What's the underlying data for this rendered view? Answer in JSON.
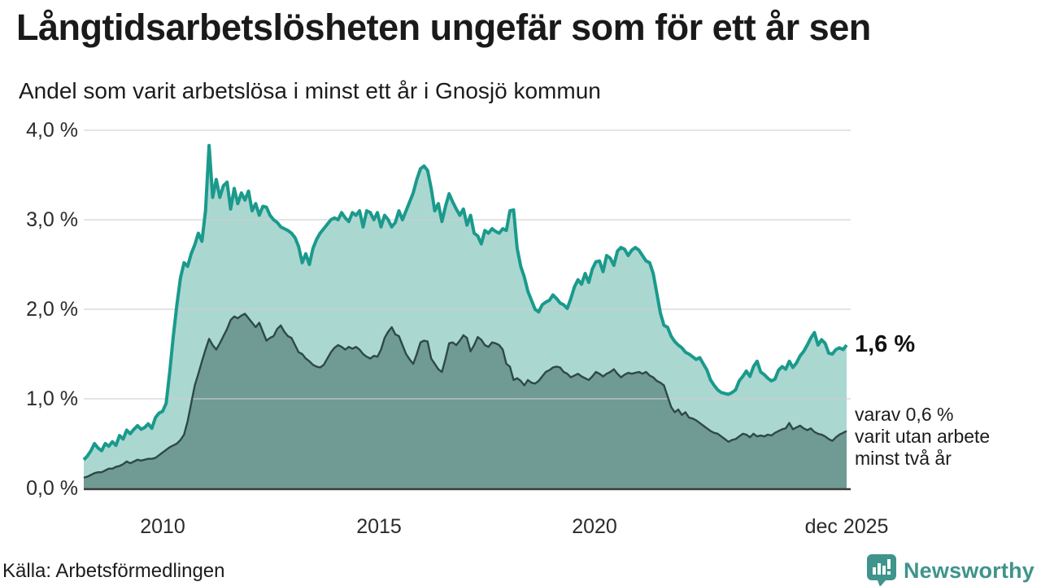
{
  "header": {
    "title": "Långtidsarbetslösheten ungefär som för ett år sen",
    "subtitle": "Andel som varit arbetslösa i minst ett år i Gnosjö kommun"
  },
  "annotations": {
    "total_value_label": "1,6 %",
    "two_year_line1": "varav 0,6 %",
    "two_year_line2": "varit utan arbete",
    "two_year_line3": "minst två år"
  },
  "footer": {
    "source": "Källa: Arbetsförmedlingen",
    "brand": "Newsworthy"
  },
  "colors": {
    "total_line": "#1a9a8c",
    "total_fill": "#abd7d1",
    "two_year_line": "#2e4a45",
    "two_year_fill": "#6f9b94",
    "gridline": "#cfcfcf",
    "baseline": "#3b3b3b",
    "brand_teal": "#3f948b",
    "text": "#1c1c1c"
  },
  "chart_data": {
    "type": "area",
    "title": "Långtidsarbetslösheten ungefär som för ett år sen",
    "subtitle": "Andel som varit arbetslösa i minst ett år i Gnosjö kommun",
    "ylabel": "",
    "xlabel": "",
    "ylim": [
      0,
      4
    ],
    "grid": true,
    "frequency": "monthly",
    "x_start": "2008-03",
    "x_end": "2025-12",
    "yticks": [
      {
        "value": 4,
        "label": "4,0 %"
      },
      {
        "value": 3,
        "label": "3,0 %"
      },
      {
        "value": 2,
        "label": "2,0 %"
      },
      {
        "value": 1,
        "label": "1,0 %"
      },
      {
        "value": 0,
        "label": "0,0 %"
      }
    ],
    "xticks": [
      {
        "index": 22,
        "label": "2010"
      },
      {
        "index": 82,
        "label": "2015"
      },
      {
        "index": 142,
        "label": "2020"
      },
      {
        "index": 213,
        "label": "dec 2025"
      }
    ],
    "series": [
      {
        "name": "Arbetslösa minst ett år",
        "end_value": 1.6,
        "values": [
          0.32,
          0.36,
          0.42,
          0.5,
          0.45,
          0.42,
          0.5,
          0.47,
          0.52,
          0.48,
          0.59,
          0.55,
          0.65,
          0.61,
          0.66,
          0.7,
          0.66,
          0.68,
          0.72,
          0.67,
          0.79,
          0.84,
          0.86,
          0.95,
          1.3,
          1.7,
          2.05,
          2.35,
          2.52,
          2.48,
          2.62,
          2.72,
          2.85,
          2.76,
          3.1,
          3.83,
          3.25,
          3.45,
          3.25,
          3.38,
          3.42,
          3.12,
          3.35,
          3.18,
          3.3,
          3.22,
          3.32,
          3.1,
          3.18,
          3.05,
          3.15,
          3.14,
          3.05,
          3.0,
          2.97,
          2.92,
          2.9,
          2.88,
          2.85,
          2.8,
          2.7,
          2.52,
          2.62,
          2.5,
          2.68,
          2.78,
          2.85,
          2.9,
          2.95,
          3.0,
          3.02,
          3.0,
          3.08,
          3.02,
          2.98,
          3.08,
          3.05,
          3.1,
          2.92,
          3.1,
          3.08,
          3.0,
          3.08,
          2.92,
          3.05,
          3.0,
          2.92,
          2.97,
          3.1,
          3.0,
          3.1,
          3.2,
          3.3,
          3.45,
          3.57,
          3.6,
          3.55,
          3.35,
          3.1,
          3.18,
          2.98,
          3.15,
          3.29,
          3.2,
          3.12,
          3.05,
          3.12,
          2.94,
          3.05,
          2.85,
          2.82,
          2.73,
          2.88,
          2.85,
          2.9,
          2.87,
          2.85,
          2.9,
          2.88,
          3.1,
          3.11,
          2.68,
          2.48,
          2.36,
          2.2,
          2.1,
          2.0,
          1.97,
          2.05,
          2.08,
          2.1,
          2.16,
          2.12,
          2.07,
          2.05,
          2.01,
          2.12,
          2.25,
          2.33,
          2.28,
          2.4,
          2.3,
          2.45,
          2.53,
          2.54,
          2.42,
          2.6,
          2.57,
          2.49,
          2.65,
          2.69,
          2.67,
          2.6,
          2.66,
          2.69,
          2.66,
          2.6,
          2.54,
          2.52,
          2.4,
          2.18,
          1.96,
          1.82,
          1.8,
          1.7,
          1.64,
          1.6,
          1.57,
          1.52,
          1.5,
          1.47,
          1.44,
          1.46,
          1.39,
          1.32,
          1.21,
          1.15,
          1.1,
          1.07,
          1.06,
          1.05,
          1.07,
          1.1,
          1.2,
          1.25,
          1.31,
          1.25,
          1.36,
          1.42,
          1.3,
          1.27,
          1.23,
          1.2,
          1.22,
          1.32,
          1.36,
          1.33,
          1.42,
          1.35,
          1.4,
          1.48,
          1.53,
          1.6,
          1.68,
          1.74,
          1.6,
          1.66,
          1.62,
          1.51,
          1.5,
          1.55,
          1.57,
          1.55,
          1.6
        ]
      },
      {
        "name": "Varav utan arbete minst två år",
        "end_value": 0.6,
        "values": [
          0.12,
          0.13,
          0.15,
          0.17,
          0.18,
          0.18,
          0.2,
          0.22,
          0.22,
          0.24,
          0.25,
          0.27,
          0.3,
          0.28,
          0.3,
          0.32,
          0.31,
          0.32,
          0.33,
          0.33,
          0.34,
          0.37,
          0.4,
          0.43,
          0.46,
          0.48,
          0.5,
          0.54,
          0.6,
          0.75,
          0.95,
          1.15,
          1.28,
          1.42,
          1.55,
          1.67,
          1.6,
          1.55,
          1.62,
          1.7,
          1.78,
          1.88,
          1.92,
          1.9,
          1.93,
          1.95,
          1.9,
          1.85,
          1.8,
          1.85,
          1.75,
          1.65,
          1.68,
          1.7,
          1.78,
          1.82,
          1.75,
          1.7,
          1.68,
          1.6,
          1.52,
          1.5,
          1.45,
          1.42,
          1.38,
          1.36,
          1.35,
          1.38,
          1.45,
          1.52,
          1.57,
          1.6,
          1.58,
          1.55,
          1.58,
          1.56,
          1.58,
          1.55,
          1.5,
          1.47,
          1.45,
          1.48,
          1.47,
          1.55,
          1.68,
          1.75,
          1.8,
          1.72,
          1.7,
          1.6,
          1.5,
          1.44,
          1.39,
          1.5,
          1.63,
          1.65,
          1.64,
          1.45,
          1.39,
          1.33,
          1.3,
          1.45,
          1.62,
          1.63,
          1.6,
          1.65,
          1.71,
          1.68,
          1.53,
          1.6,
          1.69,
          1.66,
          1.6,
          1.58,
          1.63,
          1.62,
          1.6,
          1.55,
          1.39,
          1.36,
          1.21,
          1.23,
          1.2,
          1.15,
          1.21,
          1.18,
          1.17,
          1.2,
          1.25,
          1.3,
          1.32,
          1.35,
          1.36,
          1.35,
          1.3,
          1.28,
          1.24,
          1.26,
          1.28,
          1.25,
          1.23,
          1.21,
          1.25,
          1.3,
          1.28,
          1.25,
          1.28,
          1.3,
          1.33,
          1.28,
          1.24,
          1.27,
          1.29,
          1.28,
          1.29,
          1.3,
          1.28,
          1.3,
          1.26,
          1.24,
          1.2,
          1.18,
          1.15,
          1.03,
          0.91,
          0.85,
          0.88,
          0.82,
          0.85,
          0.79,
          0.78,
          0.76,
          0.73,
          0.7,
          0.67,
          0.64,
          0.62,
          0.61,
          0.58,
          0.55,
          0.52,
          0.54,
          0.55,
          0.58,
          0.61,
          0.6,
          0.57,
          0.61,
          0.58,
          0.59,
          0.58,
          0.6,
          0.59,
          0.62,
          0.64,
          0.66,
          0.67,
          0.73,
          0.66,
          0.68,
          0.7,
          0.67,
          0.65,
          0.67,
          0.63,
          0.61,
          0.6,
          0.58,
          0.55,
          0.53,
          0.57,
          0.6,
          0.62,
          0.64
        ]
      }
    ]
  }
}
